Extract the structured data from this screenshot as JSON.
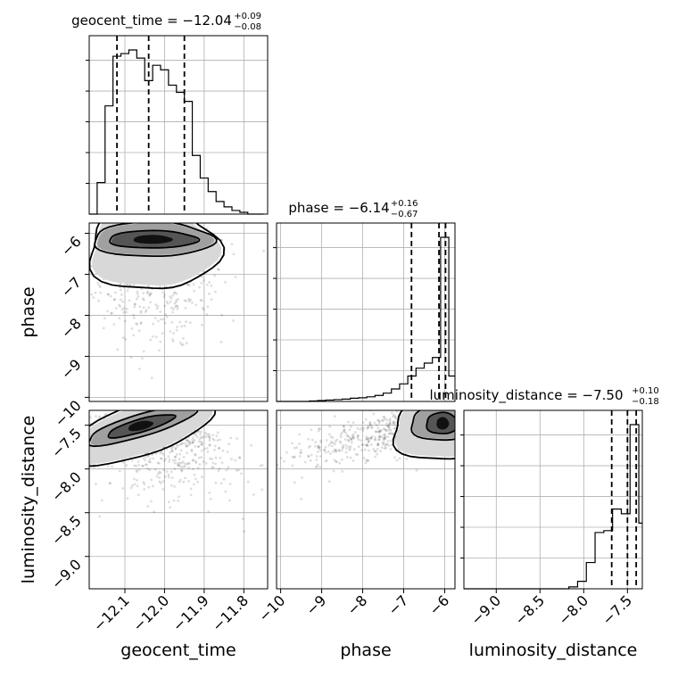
{
  "parameters": [
    {
      "key": "geocent_time",
      "label": "geocent_time",
      "title_main": "geocent_time = −12.04",
      "title_plus": "+0.09",
      "title_minus": "−0.08"
    },
    {
      "key": "phase",
      "label": "phase",
      "title_main": "phase = −6.14",
      "title_plus": "+0.16",
      "title_minus": "−0.67"
    },
    {
      "key": "luminosity_distance",
      "label": "luminosity_distance",
      "title_main": "luminosity_distance = −7.50",
      "title_plus": "+0.10",
      "title_minus": "−0.18"
    }
  ],
  "chart_data": {
    "type": "corner",
    "grid": true,
    "axes": {
      "geocent_time": {
        "range": [
          -12.19,
          -11.74
        ],
        "ticks": [
          -12.1,
          -12.0,
          -11.9,
          -11.8
        ],
        "tick_labels": [
          "−12.1",
          "−12.0",
          "−11.9",
          "−11.8"
        ]
      },
      "phase": {
        "range": [
          -10.1,
          -5.75
        ],
        "ticks": [
          -10,
          -9,
          -8,
          -7,
          -6
        ],
        "tick_labels": [
          "−10",
          "−9",
          "−8",
          "−7",
          "−6"
        ]
      },
      "luminosity_distance": {
        "range": [
          -9.37,
          -7.33
        ],
        "ticks": [
          -9.0,
          -8.5,
          -8.0,
          -7.5
        ],
        "tick_labels": [
          "−9.0",
          "−8.5",
          "−8.0",
          "−7.5"
        ]
      }
    },
    "marginals": {
      "geocent_time": {
        "bins": [
          -12.19,
          -12.17,
          -12.15,
          -12.13,
          -12.11,
          -12.09,
          -12.07,
          -12.05,
          -12.03,
          -12.01,
          -11.99,
          -11.97,
          -11.95,
          -11.93,
          -11.91,
          -11.89,
          -11.87,
          -11.85,
          -11.83,
          -11.81,
          -11.79,
          -11.77,
          -11.75
        ],
        "counts": [
          0,
          35,
          120,
          175,
          178,
          182,
          173,
          148,
          165,
          160,
          143,
          135,
          125,
          65,
          40,
          25,
          14,
          8,
          4,
          2,
          0,
          0
        ],
        "quantiles": [
          -12.12,
          -12.04,
          -11.95
        ]
      },
      "phase": {
        "bins": [
          -10.1,
          -9.9,
          -9.7,
          -9.5,
          -9.3,
          -9.1,
          -8.9,
          -8.7,
          -8.5,
          -8.3,
          -8.1,
          -7.9,
          -7.7,
          -7.5,
          -7.3,
          -7.1,
          -6.9,
          -6.7,
          -6.5,
          -6.3,
          -6.1,
          -5.9,
          -5.75
        ],
        "counts": [
          0,
          0,
          0,
          0,
          1,
          2,
          3,
          4,
          5,
          7,
          8,
          10,
          13,
          18,
          27,
          38,
          55,
          72,
          83,
          95,
          355,
          55
        ],
        "quantiles": [
          -6.81,
          -6.14,
          -5.98
        ]
      },
      "luminosity_distance": {
        "bins": [
          -9.37,
          -9.27,
          -9.17,
          -9.07,
          -8.97,
          -8.87,
          -8.77,
          -8.67,
          -8.57,
          -8.47,
          -8.37,
          -8.27,
          -8.17,
          -8.07,
          -7.97,
          -7.87,
          -7.77,
          -7.67,
          -7.57,
          -7.47,
          -7.37,
          -7.33
        ],
        "counts": [
          0,
          0,
          0,
          0,
          0,
          0,
          0,
          0,
          0,
          0,
          0,
          0,
          2,
          8,
          28,
          60,
          62,
          85,
          80,
          175,
          70
        ],
        "quantiles": [
          -7.68,
          -7.5,
          -7.4
        ]
      }
    },
    "pairs": [
      {
        "x": "geocent_time",
        "y": "phase",
        "peak": [
          -12.03,
          -6.02
        ]
      },
      {
        "x": "geocent_time",
        "y": "luminosity_distance",
        "peak": [
          -12.02,
          -7.47
        ]
      },
      {
        "x": "phase",
        "y": "luminosity_distance",
        "peak": [
          -6.05,
          -7.43
        ]
      }
    ]
  }
}
